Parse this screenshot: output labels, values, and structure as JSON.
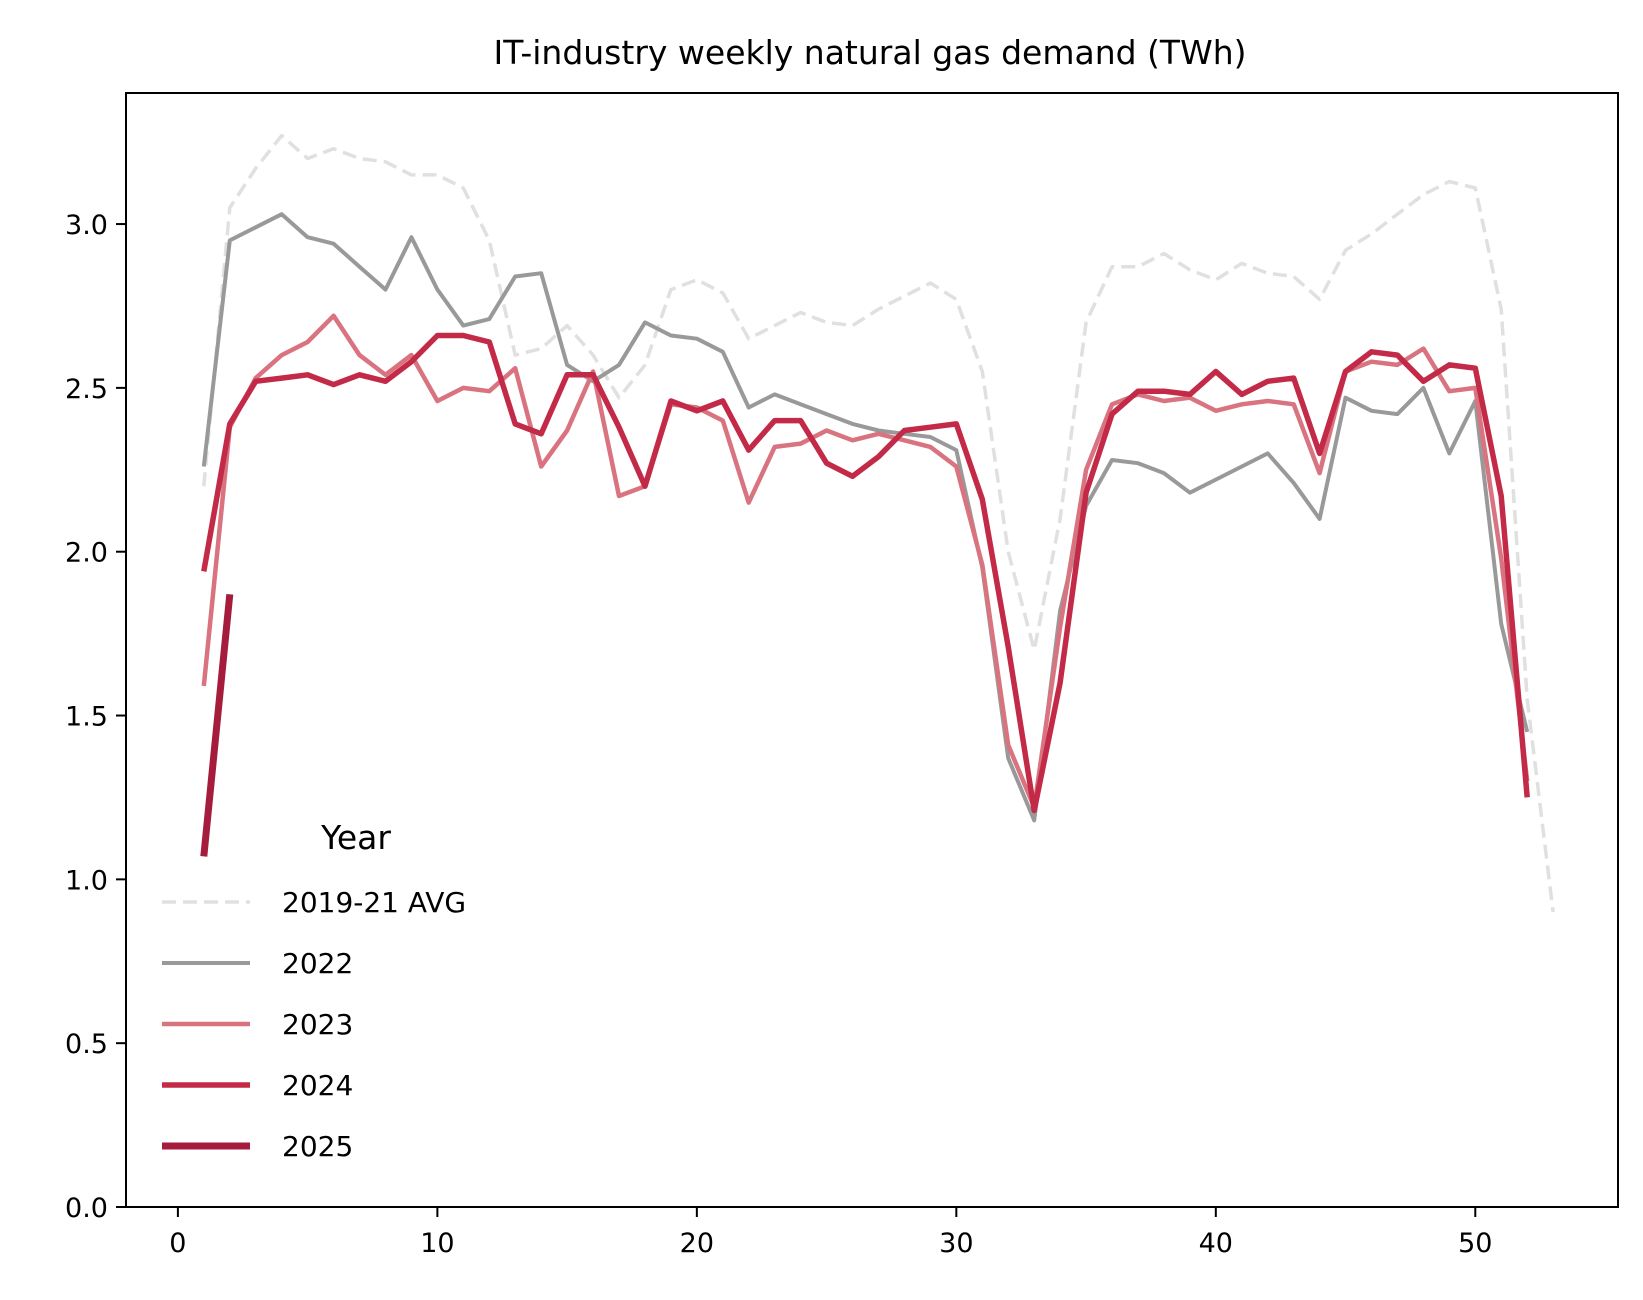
{
  "chart_data": {
    "type": "line",
    "title": "IT-industry weekly natural gas demand (TWh)",
    "xlabel": "",
    "ylabel": "",
    "xlim": [
      -2,
      55.5
    ],
    "ylim": [
      0,
      3.4
    ],
    "xticks": [
      0,
      10,
      20,
      30,
      40,
      50
    ],
    "xtick_labels": [
      "0",
      "10",
      "20",
      "30",
      "40",
      "50"
    ],
    "yticks": [
      0.0,
      0.5,
      1.0,
      1.5,
      2.0,
      2.5,
      3.0
    ],
    "ytick_labels": [
      "0.0",
      "0.5",
      "1.0",
      "1.5",
      "2.0",
      "2.5",
      "3.0"
    ],
    "grid": false,
    "legend": {
      "title": "Year",
      "placement": "lower-left"
    },
    "series": [
      {
        "name": "2019-21 AVG",
        "color": "#e0e0e0",
        "style": "dashed",
        "width": 3.5,
        "x": [
          1,
          2,
          3,
          4,
          5,
          6,
          7,
          8,
          9,
          10,
          11,
          12,
          13,
          14,
          15,
          16,
          17,
          18,
          19,
          20,
          21,
          22,
          23,
          24,
          25,
          26,
          27,
          28,
          29,
          30,
          31,
          32,
          33,
          34,
          35,
          36,
          37,
          38,
          39,
          40,
          41,
          42,
          43,
          44,
          45,
          46,
          47,
          48,
          49,
          50,
          51,
          52,
          53
        ],
        "values": [
          2.2,
          3.05,
          3.17,
          3.27,
          3.2,
          3.23,
          3.2,
          3.19,
          3.15,
          3.15,
          3.11,
          2.95,
          2.6,
          2.62,
          2.69,
          2.6,
          2.47,
          2.57,
          2.8,
          2.83,
          2.79,
          2.65,
          2.69,
          2.73,
          2.7,
          2.69,
          2.74,
          2.78,
          2.82,
          2.77,
          2.55,
          2.0,
          1.7,
          2.1,
          2.7,
          2.87,
          2.87,
          2.91,
          2.86,
          2.83,
          2.88,
          2.85,
          2.84,
          2.77,
          2.92,
          2.97,
          3.03,
          3.09,
          3.13,
          3.11,
          2.74,
          1.55,
          0.9
        ]
      },
      {
        "name": "2022",
        "color": "#999999",
        "style": "solid",
        "width": 4,
        "x": [
          1,
          2,
          3,
          4,
          5,
          6,
          7,
          8,
          9,
          10,
          11,
          12,
          13,
          14,
          15,
          16,
          17,
          18,
          19,
          20,
          21,
          22,
          23,
          24,
          25,
          26,
          27,
          28,
          29,
          30,
          31,
          32,
          33,
          34,
          35,
          36,
          37,
          38,
          39,
          40,
          41,
          42,
          43,
          44,
          45,
          46,
          47,
          48,
          49,
          50,
          51,
          52
        ],
        "values": [
          2.26,
          2.95,
          2.99,
          3.03,
          2.96,
          2.94,
          2.87,
          2.8,
          2.96,
          2.8,
          2.69,
          2.71,
          2.84,
          2.85,
          2.57,
          2.52,
          2.57,
          2.7,
          2.66,
          2.65,
          2.61,
          2.44,
          2.48,
          2.45,
          2.42,
          2.39,
          2.37,
          2.36,
          2.35,
          2.31,
          1.95,
          1.37,
          1.18,
          1.82,
          2.14,
          2.28,
          2.27,
          2.24,
          2.18,
          2.22,
          2.26,
          2.3,
          2.21,
          2.1,
          2.47,
          2.43,
          2.42,
          2.5,
          2.3,
          2.46,
          1.78,
          1.45
        ]
      },
      {
        "name": "2023",
        "color": "#d9737f",
        "style": "solid",
        "width": 4.5,
        "x": [
          1,
          2,
          3,
          4,
          5,
          6,
          7,
          8,
          9,
          10,
          11,
          12,
          13,
          14,
          15,
          16,
          17,
          18,
          19,
          20,
          21,
          22,
          23,
          24,
          25,
          26,
          27,
          28,
          29,
          30,
          31,
          32,
          33,
          34,
          35,
          36,
          37,
          38,
          39,
          40,
          41,
          42,
          43,
          44,
          45,
          46,
          47,
          48,
          49,
          50,
          51,
          52
        ],
        "values": [
          1.59,
          2.38,
          2.53,
          2.6,
          2.64,
          2.72,
          2.6,
          2.54,
          2.6,
          2.46,
          2.5,
          2.49,
          2.56,
          2.26,
          2.37,
          2.55,
          2.17,
          2.2,
          2.45,
          2.44,
          2.4,
          2.15,
          2.32,
          2.33,
          2.37,
          2.34,
          2.36,
          2.34,
          2.32,
          2.26,
          1.96,
          1.41,
          1.22,
          1.77,
          2.25,
          2.45,
          2.48,
          2.46,
          2.47,
          2.43,
          2.45,
          2.46,
          2.45,
          2.24,
          2.55,
          2.58,
          2.57,
          2.62,
          2.49,
          2.5,
          1.98,
          1.3
        ]
      },
      {
        "name": "2024",
        "color": "#c32a47",
        "style": "solid",
        "width": 5.5,
        "x": [
          1,
          2,
          3,
          4,
          5,
          6,
          7,
          8,
          9,
          10,
          11,
          12,
          13,
          14,
          15,
          16,
          17,
          18,
          19,
          20,
          21,
          22,
          23,
          24,
          25,
          26,
          27,
          28,
          29,
          30,
          31,
          32,
          33,
          34,
          35,
          36,
          37,
          38,
          39,
          40,
          41,
          42,
          43,
          44,
          45,
          46,
          47,
          48,
          49,
          50,
          51,
          52
        ],
        "values": [
          1.94,
          2.39,
          2.52,
          2.53,
          2.54,
          2.51,
          2.54,
          2.52,
          2.58,
          2.66,
          2.66,
          2.64,
          2.39,
          2.36,
          2.54,
          2.54,
          2.38,
          2.2,
          2.46,
          2.43,
          2.46,
          2.31,
          2.4,
          2.4,
          2.27,
          2.23,
          2.29,
          2.37,
          2.38,
          2.39,
          2.16,
          1.71,
          1.21,
          1.6,
          2.18,
          2.42,
          2.49,
          2.49,
          2.48,
          2.55,
          2.48,
          2.52,
          2.53,
          2.3,
          2.55,
          2.61,
          2.6,
          2.52,
          2.57,
          2.56,
          2.17,
          1.25
        ]
      },
      {
        "name": "2025",
        "color": "#a51c3c",
        "style": "solid",
        "width": 7,
        "x": [
          1,
          2
        ],
        "values": [
          1.07,
          1.87
        ]
      }
    ]
  }
}
